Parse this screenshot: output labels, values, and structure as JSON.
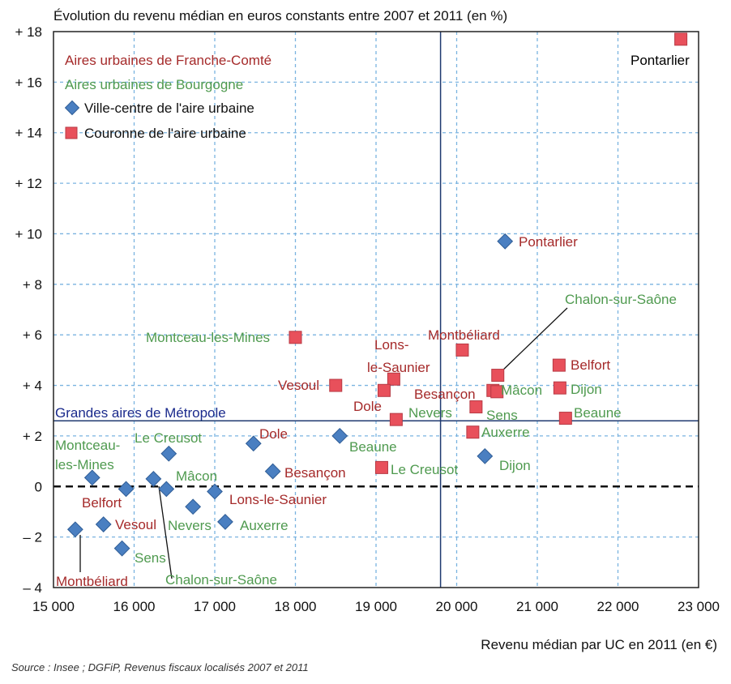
{
  "chart_data": {
    "type": "scatter",
    "title": "Évolution du revenu médian en euros constants entre 2007 et 2011 (en %)",
    "xlabel": "Revenu médian par UC en 2011 (en €)",
    "source": "Source : Insee ; DGFiP, Revenus fiscaux localisés 2007 et 2011",
    "xlim": [
      15000,
      23000
    ],
    "ylim": [
      -4,
      18
    ],
    "x_ticks": [
      15000,
      16000,
      17000,
      18000,
      19000,
      20000,
      21000,
      22000,
      23000
    ],
    "x_tick_labels": [
      "15 000",
      "16 000",
      "17 000",
      "18 000",
      "19 000",
      "20 000",
      "21 000",
      "22 000",
      "23 000"
    ],
    "y_ticks": [
      -4,
      -2,
      0,
      2,
      4,
      6,
      8,
      10,
      12,
      14,
      16,
      18
    ],
    "y_tick_labels": [
      "– 4",
      "– 2",
      "0",
      "+ 2",
      "+ 4",
      "+ 6",
      "+ 8",
      "+ 10",
      "+ 12",
      "+ 14",
      "+ 16",
      "+ 18"
    ],
    "grid": true,
    "reference_lines": {
      "vertical_x": 19800,
      "horizontal_y": 2.6,
      "horizontal_label": "Grandes aires de Métropole",
      "zero_line_y": 0
    },
    "legend": {
      "position": "top-left",
      "entries": [
        {
          "label": "Aires urbaines de Franche-Comté",
          "kind": "text",
          "color": "#a52a2a"
        },
        {
          "label": "Aires urbaines de Bourgogne",
          "kind": "text",
          "color": "#4f9a4f"
        },
        {
          "label": "Ville-centre de l'aire urbaine",
          "kind": "diamond",
          "color": "#4a7fc1"
        },
        {
          "label": "Couronne de l'aire urbaine",
          "kind": "square",
          "color": "#e8505b"
        }
      ]
    },
    "colors": {
      "franche_comte": "#a52a2a",
      "bourgogne": "#4f9a4f",
      "ville_centre": "#4a7fc1",
      "couronne": "#e8505b",
      "reference": "#1f3a70",
      "grid": "#7ab3e0"
    },
    "series": [
      {
        "name": "Ville-centre de l'aire urbaine",
        "marker": "diamond",
        "points": [
          {
            "label": "Pontarlier",
            "region": "Franche-Comté",
            "x": 20600,
            "y": 9.7
          },
          {
            "label": "Dijon",
            "region": "Bourgogne",
            "x": 20350,
            "y": 1.2
          },
          {
            "label": "Beaune",
            "region": "Bourgogne",
            "x": 18550,
            "y": 2.0
          },
          {
            "label": "Dole",
            "region": "Franche-Comté",
            "x": 17480,
            "y": 1.7
          },
          {
            "label": "Besançon",
            "region": "Franche-Comté",
            "x": 17720,
            "y": 0.6
          },
          {
            "label": "Lons-le-Saunier",
            "region": "Franche-Comté",
            "x": 17000,
            "y": -0.2
          },
          {
            "label": "Auxerre",
            "region": "Bourgogne",
            "x": 17130,
            "y": -1.4
          },
          {
            "label": "Nevers",
            "region": "Bourgogne",
            "x": 16730,
            "y": -0.8
          },
          {
            "label": "Le Creusot",
            "region": "Bourgogne",
            "x": 16430,
            "y": 1.3
          },
          {
            "label": "Mâcon",
            "region": "Bourgogne",
            "x": 16400,
            "y": -0.1
          },
          {
            "label": "Chalon-sur-Saône",
            "region": "Bourgogne",
            "x": 16240,
            "y": 0.3
          },
          {
            "label": "Montceau-les-Mines",
            "region": "Bourgogne",
            "x": 15480,
            "y": 0.35
          },
          {
            "label": "Belfort",
            "region": "Franche-Comté",
            "x": 15900,
            "y": -0.1
          },
          {
            "label": "Vesoul",
            "region": "Franche-Comté",
            "x": 15620,
            "y": -1.5
          },
          {
            "label": "Sens",
            "region": "Bourgogne",
            "x": 15850,
            "y": -2.45
          },
          {
            "label": "Montbéliard",
            "region": "Franche-Comté",
            "x": 15270,
            "y": -1.7
          }
        ]
      },
      {
        "name": "Couronne de l'aire urbaine",
        "marker": "square",
        "points": [
          {
            "label": "Pontarlier",
            "region": "Franche-Comté",
            "x": 22780,
            "y": 17.7
          },
          {
            "label": "Belfort",
            "region": "Franche-Comté",
            "x": 21270,
            "y": 4.8
          },
          {
            "label": "Dijon",
            "region": "Bourgogne",
            "x": 21280,
            "y": 3.9
          },
          {
            "label": "Beaune",
            "region": "Bourgogne",
            "x": 21350,
            "y": 2.7
          },
          {
            "label": "Chalon-sur-Saône",
            "region": "Bourgogne",
            "x": 20510,
            "y": 4.4
          },
          {
            "label": "Mâcon",
            "region": "Bourgogne",
            "x": 20450,
            "y": 3.8
          },
          {
            "label": "Sens",
            "region": "Bourgogne",
            "x": 20240,
            "y": 3.15
          },
          {
            "label": "Besançon",
            "region": "Franche-Comté",
            "x": 20500,
            "y": 3.75
          },
          {
            "label": "Montbéliard",
            "region": "Franche-Comté",
            "x": 20070,
            "y": 5.4
          },
          {
            "label": "Auxerre",
            "region": "Bourgogne",
            "x": 20200,
            "y": 2.15
          },
          {
            "label": "Lons-le-Saunier",
            "region": "Franche-Comté",
            "x": 19220,
            "y": 4.25
          },
          {
            "label": "Dole",
            "region": "Franche-Comté",
            "x": 19100,
            "y": 3.8
          },
          {
            "label": "Nevers",
            "region": "Bourgogne",
            "x": 19250,
            "y": 2.65
          },
          {
            "label": "Le Creusot",
            "region": "Bourgogne",
            "x": 19070,
            "y": 0.75
          },
          {
            "label": "Vesoul",
            "region": "Franche-Comté",
            "x": 18500,
            "y": 4.0
          },
          {
            "label": "Montceau-les-Mines",
            "region": "Bourgogne",
            "x": 18000,
            "y": 5.9
          }
        ]
      }
    ],
    "annotations": [
      {
        "text": "Pontarlier",
        "color": "#000000"
      },
      {
        "text": "Pontarlier",
        "color": "#a52a2a"
      },
      {
        "text": "Chalon-sur-Saône",
        "color": "#4f9a4f"
      },
      {
        "text": "Montbéliard",
        "color": "#a52a2a"
      },
      {
        "text": "Montceau-les-Mines",
        "color": "#4f9a4f"
      },
      {
        "text": "Lons-",
        "color": "#a52a2a"
      },
      {
        "text": "le-Saunier",
        "color": "#a52a2a"
      },
      {
        "text": "Belfort",
        "color": "#a52a2a"
      },
      {
        "text": "Vesoul",
        "color": "#a52a2a"
      },
      {
        "text": "Mâcon",
        "color": "#4f9a4f"
      },
      {
        "text": "Dijon",
        "color": "#4f9a4f"
      },
      {
        "text": "Besançon",
        "color": "#a52a2a"
      },
      {
        "text": "Dole",
        "color": "#a52a2a"
      },
      {
        "text": "Sens",
        "color": "#4f9a4f"
      },
      {
        "text": "Nevers",
        "color": "#4f9a4f"
      },
      {
        "text": "Beaune",
        "color": "#4f9a4f"
      },
      {
        "text": "Auxerre",
        "color": "#4f9a4f"
      },
      {
        "text": "Dole",
        "color": "#a52a2a"
      },
      {
        "text": "Le Creusot",
        "color": "#4f9a4f"
      },
      {
        "text": "Beaune",
        "color": "#4f9a4f"
      },
      {
        "text": "Montceau-",
        "color": "#4f9a4f"
      },
      {
        "text": "les-Mines",
        "color": "#4f9a4f"
      },
      {
        "text": "Besançon",
        "color": "#a52a2a"
      },
      {
        "text": "Le Creusot",
        "color": "#4f9a4f"
      },
      {
        "text": "Dijon",
        "color": "#4f9a4f"
      },
      {
        "text": "Mâcon",
        "color": "#4f9a4f"
      },
      {
        "text": "Belfort",
        "color": "#a52a2a"
      },
      {
        "text": "Lons-le-Saunier",
        "color": "#a52a2a"
      },
      {
        "text": "Vesoul",
        "color": "#a52a2a"
      },
      {
        "text": "Nevers",
        "color": "#4f9a4f"
      },
      {
        "text": "Auxerre",
        "color": "#4f9a4f"
      },
      {
        "text": "Sens",
        "color": "#4f9a4f"
      },
      {
        "text": "Montbéliard",
        "color": "#a52a2a"
      },
      {
        "text": "Chalon-sur-Saône",
        "color": "#4f9a4f"
      }
    ]
  }
}
